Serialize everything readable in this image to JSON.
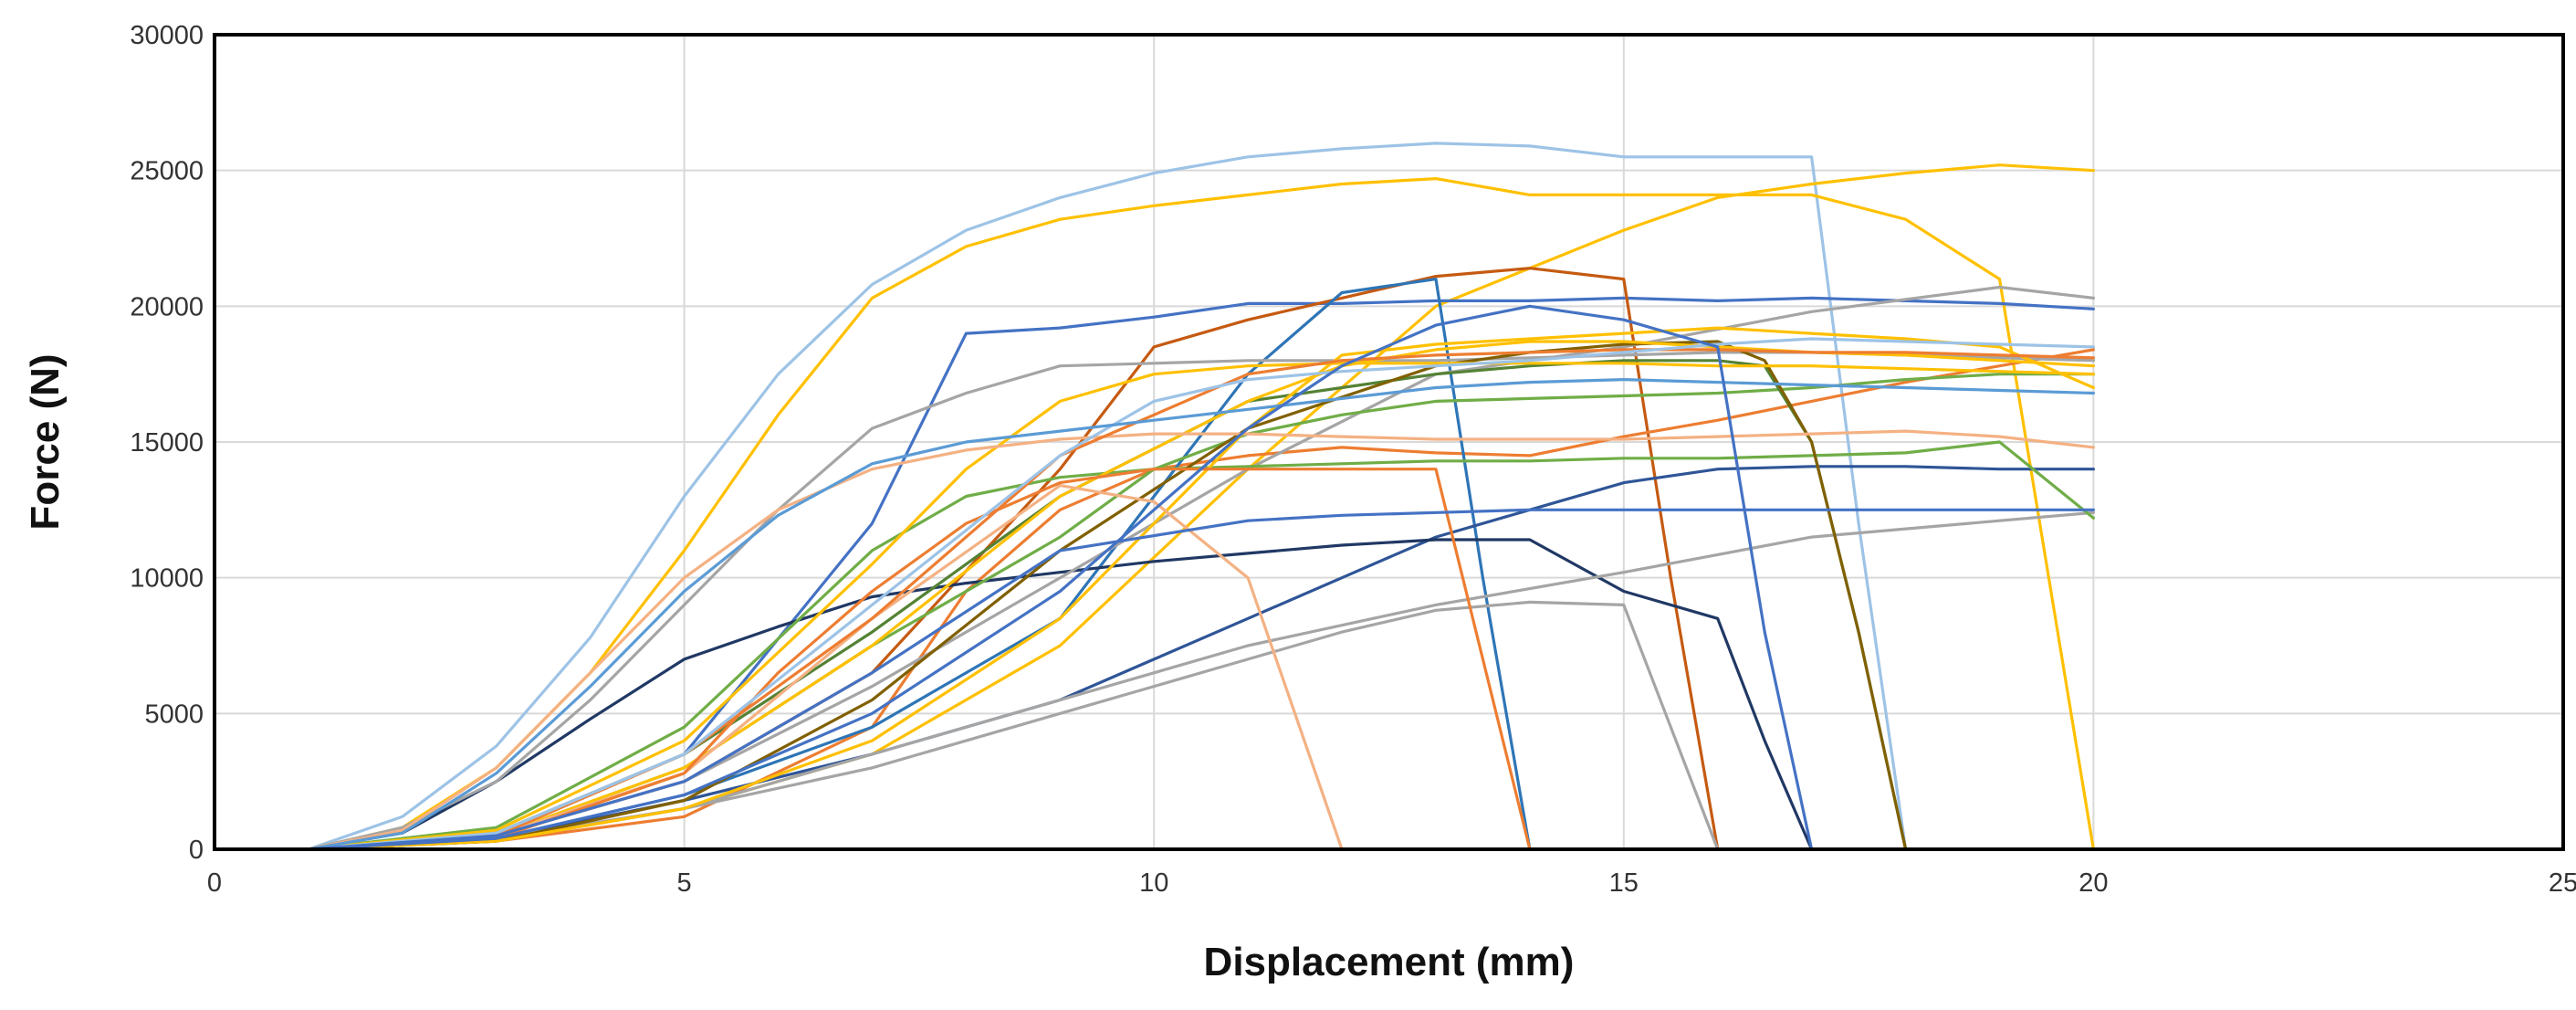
{
  "chart_data": {
    "type": "line",
    "title": "",
    "xlabel": "Displacement (mm)",
    "ylabel": "Force (N)",
    "xlim": [
      0,
      25
    ],
    "ylim": [
      0,
      30000
    ],
    "xticks": [
      0,
      5,
      10,
      15,
      20,
      25
    ],
    "yticks": [
      0,
      5000,
      10000,
      15000,
      20000,
      25000,
      30000
    ],
    "grid": true,
    "legend": "none",
    "series": [
      {
        "color": "#9dc3e6",
        "x": [
          1,
          2,
          3,
          4,
          5,
          6,
          7,
          8,
          9,
          10,
          11,
          12,
          13,
          14,
          15,
          16,
          17,
          17.5,
          18,
          20
        ],
        "y": [
          0,
          1200,
          3800,
          7800,
          13000,
          17500,
          20800,
          22800,
          24000,
          24900,
          25500,
          25800,
          26000,
          25900,
          25500,
          25500,
          25500,
          12000,
          0,
          0
        ]
      },
      {
        "color": "#ffc000",
        "x": [
          1,
          2,
          3,
          4,
          5,
          6,
          7,
          8,
          9,
          10,
          11,
          12,
          13,
          14,
          15,
          16,
          17,
          18,
          19,
          20
        ],
        "y": [
          0,
          800,
          3000,
          6500,
          11000,
          16000,
          20300,
          22200,
          23200,
          23700,
          24100,
          24500,
          24700,
          24100,
          24100,
          24100,
          24100,
          23200,
          21000,
          0
        ]
      },
      {
        "color": "#ffc000",
        "x": [
          1,
          3,
          5,
          7,
          9,
          11,
          13,
          15,
          16,
          17,
          18,
          19,
          20
        ],
        "y": [
          0,
          300,
          1500,
          3500,
          7500,
          14000,
          20000,
          22800,
          24000,
          24500,
          24900,
          25200,
          25000
        ]
      },
      {
        "color": "#4472c4",
        "x": [
          1,
          3,
          5,
          7,
          8,
          9,
          10,
          11,
          12,
          13,
          14,
          15,
          16,
          17,
          18,
          19,
          20
        ],
        "y": [
          0,
          600,
          3500,
          12000,
          19000,
          19200,
          19600,
          20100,
          20100,
          20200,
          20200,
          20300,
          20200,
          20300,
          20200,
          20100,
          19900
        ]
      },
      {
        "color": "#c55a11",
        "x": [
          1,
          3,
          5,
          7,
          9,
          10,
          11,
          12,
          13,
          14,
          15,
          15.5,
          16,
          20
        ],
        "y": [
          0,
          500,
          2500,
          6500,
          14000,
          18500,
          19500,
          20300,
          21100,
          21400,
          21000,
          10000,
          0,
          0
        ]
      },
      {
        "color": "#ed7d31",
        "x": [
          1,
          3,
          5,
          7,
          8,
          9,
          10,
          11,
          12,
          13,
          14,
          15,
          16,
          17,
          18,
          19,
          20
        ],
        "y": [
          0,
          300,
          1200,
          4500,
          9500,
          12500,
          14000,
          14500,
          14800,
          14600,
          14500,
          15200,
          15800,
          16500,
          17200,
          17800,
          18400
        ]
      },
      {
        "color": "#2e75b6",
        "x": [
          1,
          3,
          5,
          7,
          9,
          10,
          11,
          12,
          13,
          13.5,
          14,
          20
        ],
        "y": [
          0,
          400,
          2000,
          4500,
          8500,
          13000,
          17500,
          20500,
          21000,
          10000,
          0,
          0
        ]
      },
      {
        "color": "#2f5597",
        "x": [
          1,
          3,
          5,
          7,
          9,
          10,
          11,
          12,
          13,
          14,
          15,
          16,
          17,
          18,
          19,
          20
        ],
        "y": [
          0,
          400,
          1800,
          3500,
          5500,
          7000,
          8500,
          10000,
          11500,
          12500,
          13500,
          14000,
          14100,
          14100,
          14000,
          14000
        ]
      },
      {
        "color": "#203864",
        "x": [
          1,
          2,
          3,
          4,
          5,
          6,
          7,
          8,
          9,
          10,
          11,
          12,
          13,
          14,
          15,
          16,
          16.5,
          17,
          20
        ],
        "y": [
          0,
          600,
          2500,
          4800,
          7000,
          8200,
          9300,
          9800,
          10200,
          10600,
          10900,
          11200,
          11400,
          11400,
          9500,
          8500,
          4000,
          0,
          0
        ]
      },
      {
        "color": "#a5a5a5",
        "x": [
          1,
          3,
          5,
          7,
          9,
          10,
          11,
          12,
          13,
          14,
          15,
          15.5,
          16,
          20
        ],
        "y": [
          0,
          400,
          1500,
          3000,
          5000,
          6000,
          7000,
          8000,
          8800,
          9100,
          9000,
          4500,
          0,
          0
        ]
      },
      {
        "color": "#a5a5a5",
        "x": [
          1,
          3,
          5,
          7,
          9,
          11,
          13,
          15,
          17,
          18,
          19,
          20
        ],
        "y": [
          0,
          300,
          1500,
          3500,
          5500,
          7500,
          9000,
          10200,
          11500,
          11800,
          12100,
          12400
        ]
      },
      {
        "color": "#a5a5a5",
        "x": [
          1,
          2,
          3,
          4,
          5,
          6,
          7,
          8,
          9,
          10,
          11,
          12,
          13,
          14,
          15,
          16,
          17,
          18,
          19,
          20
        ],
        "y": [
          0,
          800,
          2500,
          5500,
          9000,
          12500,
          15500,
          16800,
          17800,
          17900,
          18000,
          18000,
          18000,
          18100,
          18200,
          18300,
          18300,
          18200,
          18100,
          18000
        ]
      },
      {
        "color": "#a5a5a5",
        "x": [
          1,
          3,
          5,
          7,
          9,
          11,
          13,
          15,
          17,
          19,
          20
        ],
        "y": [
          0,
          500,
          2500,
          6000,
          10000,
          14000,
          17500,
          18500,
          19800,
          20700,
          20300
        ]
      },
      {
        "color": "#70ad47",
        "x": [
          1,
          3,
          5,
          7,
          8,
          9,
          10,
          11,
          12,
          13,
          14,
          15,
          16,
          17,
          18,
          19,
          20
        ],
        "y": [
          0,
          800,
          4500,
          11000,
          13000,
          13700,
          14000,
          14100,
          14200,
          14300,
          14300,
          14400,
          14400,
          14500,
          14600,
          15000,
          12200
        ]
      },
      {
        "color": "#70ad47",
        "x": [
          1,
          3,
          5,
          7,
          9,
          10,
          11,
          12,
          13,
          14,
          15,
          16,
          17,
          18,
          19,
          20
        ],
        "y": [
          0,
          500,
          3000,
          7500,
          11500,
          14000,
          15300,
          16000,
          16500,
          16600,
          16700,
          16800,
          17000,
          17300,
          17500,
          17500
        ]
      },
      {
        "color": "#548235",
        "x": [
          1,
          3,
          5,
          7,
          9,
          11,
          12,
          13,
          14,
          15,
          16,
          16.5,
          17,
          17.5,
          18,
          20
        ],
        "y": [
          0,
          600,
          3500,
          8000,
          13000,
          16500,
          17000,
          17500,
          17800,
          18000,
          18000,
          17800,
          15000,
          8000,
          0,
          0
        ]
      },
      {
        "color": "#806000",
        "x": [
          1,
          3,
          5,
          7,
          9,
          11,
          13,
          14,
          15,
          16,
          16.5,
          17,
          17.5,
          18,
          20
        ],
        "y": [
          0,
          300,
          1800,
          5500,
          11000,
          15500,
          17800,
          18300,
          18600,
          18700,
          18000,
          15000,
          8000,
          0,
          0
        ]
      },
      {
        "color": "#ffc000",
        "x": [
          1,
          3,
          5,
          7,
          9,
          10,
          11,
          12,
          13,
          14,
          15,
          16,
          17,
          18,
          19,
          20
        ],
        "y": [
          0,
          300,
          1500,
          4000,
          8500,
          12000,
          15500,
          18200,
          18600,
          18800,
          19000,
          19200,
          19000,
          18800,
          18500,
          17000
        ]
      },
      {
        "color": "#ffc000",
        "x": [
          1,
          3,
          5,
          7,
          8,
          9,
          10,
          11,
          12,
          13,
          14,
          15,
          16,
          17,
          18,
          19,
          20
        ],
        "y": [
          0,
          700,
          4000,
          10500,
          14000,
          16500,
          17500,
          17800,
          17900,
          17900,
          17900,
          17900,
          17800,
          17800,
          17700,
          17600,
          17500
        ]
      },
      {
        "color": "#ffc000",
        "x": [
          1,
          3,
          5,
          7,
          9,
          11,
          12,
          13,
          14,
          15,
          16,
          17,
          18,
          19,
          20
        ],
        "y": [
          0,
          500,
          3000,
          7500,
          13000,
          16500,
          17800,
          18400,
          18700,
          18700,
          18500,
          18300,
          18200,
          18000,
          17800
        ]
      },
      {
        "color": "#f4b183",
        "x": [
          1,
          2,
          3,
          4,
          5,
          6,
          7,
          8,
          9,
          10,
          11,
          12,
          13,
          14,
          15,
          16,
          17,
          18,
          19,
          20
        ],
        "y": [
          0,
          700,
          3000,
          6500,
          10000,
          12500,
          14000,
          14700,
          15100,
          15300,
          15300,
          15200,
          15100,
          15100,
          15100,
          15200,
          15300,
          15400,
          15200,
          14800
        ]
      },
      {
        "color": "#f4b183",
        "x": [
          1,
          3,
          5,
          7,
          9,
          10,
          11,
          11.5,
          12,
          20
        ],
        "y": [
          0,
          500,
          2800,
          8500,
          13400,
          12800,
          10000,
          5000,
          0,
          0
        ]
      },
      {
        "color": "#ed7d31",
        "x": [
          1,
          3,
          5,
          6,
          7,
          8,
          9,
          10,
          11,
          12,
          13,
          14,
          20
        ],
        "y": [
          0,
          400,
          2800,
          6500,
          9500,
          12000,
          13500,
          14000,
          14000,
          14000,
          14000,
          0,
          0
        ]
      },
      {
        "color": "#ed7d31",
        "x": [
          1,
          3,
          5,
          7,
          9,
          11,
          12,
          13,
          14,
          15,
          16,
          17,
          18,
          19,
          20
        ],
        "y": [
          0,
          500,
          3500,
          8500,
          14500,
          17500,
          18000,
          18200,
          18300,
          18400,
          18400,
          18300,
          18300,
          18200,
          18100
        ]
      },
      {
        "color": "#9dc3e6",
        "x": [
          1,
          3,
          5,
          7,
          9,
          10,
          11,
          12,
          13,
          14,
          15,
          16,
          17,
          18,
          19,
          20
        ],
        "y": [
          0,
          600,
          3500,
          9000,
          14500,
          16500,
          17300,
          17600,
          17800,
          18000,
          18300,
          18600,
          18800,
          18700,
          18600,
          18500
        ]
      },
      {
        "color": "#5b9bd5",
        "x": [
          1,
          2,
          3,
          4,
          5,
          6,
          7,
          8,
          9,
          10,
          11,
          12,
          13,
          14,
          15,
          16,
          17,
          18,
          19,
          20
        ],
        "y": [
          0,
          600,
          2800,
          6000,
          9500,
          12300,
          14200,
          15000,
          15400,
          15800,
          16200,
          16600,
          17000,
          17200,
          17300,
          17200,
          17100,
          17000,
          16900,
          16800
        ]
      },
      {
        "color": "#4472c4",
        "x": [
          1,
          3,
          5,
          7,
          9,
          10,
          11,
          12,
          13,
          14,
          15,
          15.5,
          16,
          16.5,
          17,
          20
        ],
        "y": [
          0,
          400,
          2000,
          5000,
          9500,
          12500,
          15500,
          17800,
          19300,
          20000,
          19500,
          19000,
          18500,
          8000,
          0,
          0
        ]
      },
      {
        "color": "#4472c4",
        "x": [
          1,
          3,
          5,
          7,
          9,
          11,
          12,
          13,
          14,
          15,
          16,
          17,
          18,
          19,
          20
        ],
        "y": [
          0,
          500,
          2500,
          6500,
          11000,
          12100,
          12300,
          12400,
          12500,
          12500,
          12500,
          12500,
          12500,
          12500,
          12500
        ]
      },
      {
        "color": "#c55a11",
        "x": [
          1,
          20
        ],
        "y": [
          0,
          0
        ]
      }
    ]
  }
}
